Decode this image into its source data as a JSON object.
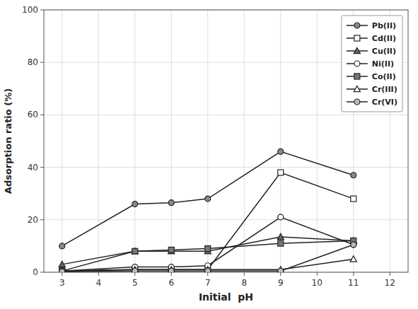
{
  "chart_data": {
    "type": "line",
    "xlabel": "Initial  pH",
    "ylabel": "Adsorption ratio (%)",
    "x": [
      3,
      5,
      6,
      7,
      9,
      11
    ],
    "series": [
      {
        "name": "Pb(II)",
        "values": [
          10,
          26,
          26.5,
          28,
          46,
          37
        ],
        "marker": "circle",
        "color": "#888888"
      },
      {
        "name": "Cd(II)",
        "values": [
          0.5,
          1,
          1,
          1,
          38,
          28
        ],
        "marker": "square",
        "color": "#ffffff"
      },
      {
        "name": "Cu(II)",
        "values": [
          3,
          8,
          8,
          8,
          13.5,
          12
        ],
        "marker": "triangle",
        "color": "#666666"
      },
      {
        "name": "Ni(II)",
        "values": [
          0.5,
          2,
          2,
          2.5,
          21,
          10.5
        ],
        "marker": "circle",
        "color": "#ffffff"
      },
      {
        "name": "Co(II)",
        "values": [
          0.5,
          8,
          8.5,
          9,
          11,
          12
        ],
        "marker": "square",
        "color": "#777777"
      },
      {
        "name": "Cr(III)",
        "values": [
          0.5,
          1,
          1,
          1,
          1,
          5
        ],
        "marker": "triangle",
        "color": "#ffffff"
      },
      {
        "name": "Cr(VI)",
        "values": [
          0.2,
          0.5,
          0.5,
          0.5,
          0.5,
          10.5
        ],
        "marker": "circle",
        "color": "#bbbbbb"
      }
    ],
    "xlim": [
      2.5,
      12.5
    ],
    "ylim": [
      0,
      100
    ],
    "xticks": [
      3,
      4,
      5,
      6,
      7,
      8,
      9,
      10,
      11,
      12
    ],
    "yticks": [
      0,
      20,
      40,
      60,
      80,
      100
    ],
    "grid": true,
    "legend": "upper right"
  }
}
